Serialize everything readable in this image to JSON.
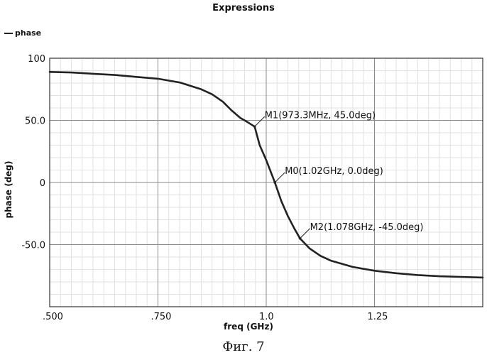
{
  "caption": "Фиг. 7",
  "chart_data": {
    "type": "line",
    "title": "Expressions",
    "xlabel": "freq (GHz)",
    "ylabel": "phase (deg)",
    "xlim": [
      0.5,
      1.5
    ],
    "ylim": [
      -100,
      100
    ],
    "x_ticks": [
      0.5,
      0.75,
      1.0,
      1.25
    ],
    "x_tick_labels": [
      ".500",
      ".750",
      "1.0",
      "1.25"
    ],
    "y_ticks": [
      100,
      50,
      0,
      -50
    ],
    "y_tick_labels": [
      "100",
      "50.0",
      "0",
      "-50.0"
    ],
    "grid": true,
    "legend_position": "top-left",
    "series": [
      {
        "name": "phase",
        "color": "#222222",
        "x": [
          0.5,
          0.55,
          0.6,
          0.65,
          0.7,
          0.75,
          0.8,
          0.85,
          0.875,
          0.9,
          0.92,
          0.94,
          0.955,
          0.9733,
          0.985,
          1.0,
          1.02,
          1.035,
          1.05,
          1.065,
          1.078,
          1.1,
          1.125,
          1.15,
          1.2,
          1.25,
          1.3,
          1.35,
          1.4,
          1.45,
          1.5
        ],
        "y": [
          89,
          88.5,
          87.5,
          86.5,
          85,
          83.5,
          80.5,
          75,
          71,
          65,
          58,
          52,
          49,
          45,
          30,
          18,
          0,
          -15,
          -27,
          -37,
          -45,
          -53,
          -59,
          -63,
          -68,
          -71,
          -73,
          -74.5,
          -75.5,
          -76,
          -76.5
        ]
      }
    ],
    "markers": [
      {
        "name": "M1",
        "x": 0.9733,
        "y": 45.0,
        "label": "M1(973.3MHz, 45.0deg)"
      },
      {
        "name": "M0",
        "x": 1.02,
        "y": 0.0,
        "label": "M0(1.02GHz, 0.0deg)"
      },
      {
        "name": "M2",
        "x": 1.078,
        "y": -45.0,
        "label": "M2(1.078GHz, -45.0deg)"
      }
    ]
  }
}
